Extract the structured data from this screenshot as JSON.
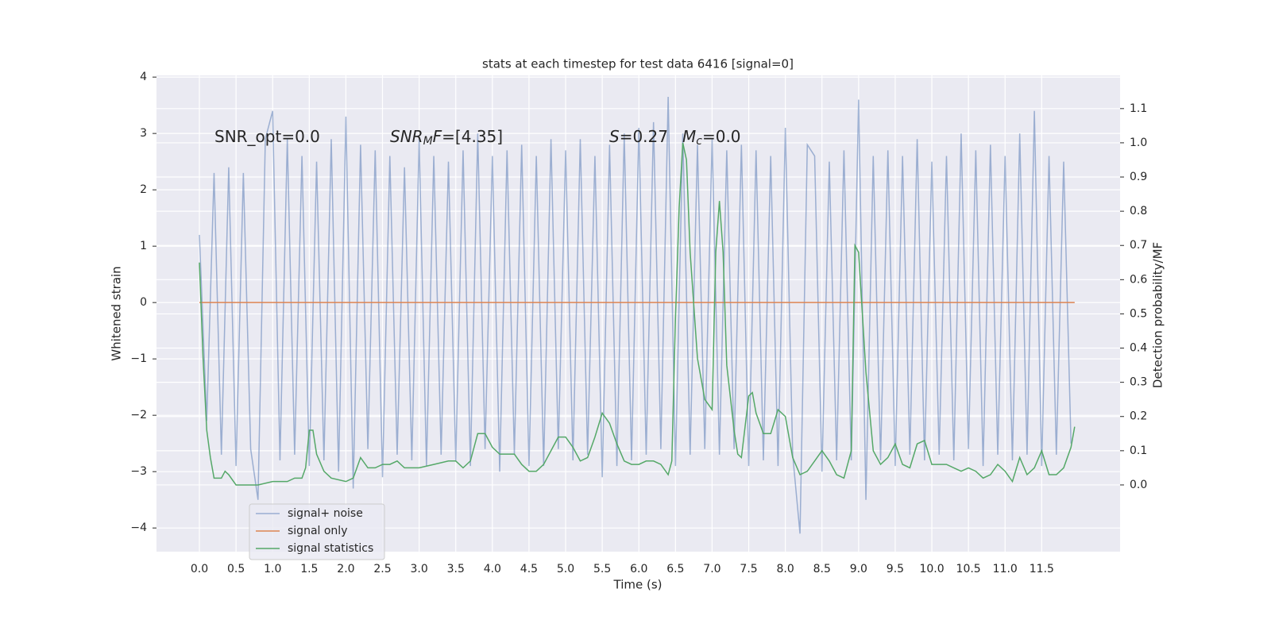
{
  "chart_data": {
    "type": "line",
    "title": "stats at each timestep for test data 6416 [signal=0]",
    "xlabel": "Time (s)",
    "ylabel": "Whitened strain",
    "y2label": "Detection probability/MF",
    "xlim": [
      -0.586,
      12.57
    ],
    "ylim": [
      -4.42,
      4.03
    ],
    "y2lim": [
      -0.195,
      1.197
    ],
    "xticks": [
      {
        "value": 0,
        "label": "0.0"
      },
      {
        "value": 0.5,
        "label": "0.5"
      },
      {
        "value": 1,
        "label": "1.0"
      },
      {
        "value": 1.5,
        "label": "1.5"
      },
      {
        "value": 2,
        "label": "2.0"
      },
      {
        "value": 2.5,
        "label": "2.5"
      },
      {
        "value": 3,
        "label": "3.0"
      },
      {
        "value": 3.5,
        "label": "3.5"
      },
      {
        "value": 4,
        "label": "4.0"
      },
      {
        "value": 4.5,
        "label": "4.5"
      },
      {
        "value": 5,
        "label": "5.0"
      },
      {
        "value": 5.5,
        "label": "5.5"
      },
      {
        "value": 6,
        "label": "6.0"
      },
      {
        "value": 6.5,
        "label": "6.5"
      },
      {
        "value": 7,
        "label": "7.0"
      },
      {
        "value": 7.5,
        "label": "7.5"
      },
      {
        "value": 8,
        "label": "8.0"
      },
      {
        "value": 8.5,
        "label": "8.5"
      },
      {
        "value": 9,
        "label": "9.0"
      },
      {
        "value": 9.5,
        "label": "9.5"
      },
      {
        "value": 10,
        "label": "10.0"
      },
      {
        "value": 10.5,
        "label": "10.5"
      },
      {
        "value": 11,
        "label": "11.0"
      },
      {
        "value": 11.5,
        "label": "11.5"
      }
    ],
    "yticks": [
      {
        "value": -4,
        "label": "−4"
      },
      {
        "value": -3,
        "label": "−3"
      },
      {
        "value": -2,
        "label": "−2"
      },
      {
        "value": -1,
        "label": "−1"
      },
      0,
      1,
      2,
      3,
      4
    ],
    "y2ticks": [
      {
        "value": 0,
        "label": "0.0"
      },
      {
        "value": 0.1,
        "label": "0.1"
      },
      {
        "value": 0.2,
        "label": "0.2"
      },
      {
        "value": 0.3,
        "label": "0.3"
      },
      {
        "value": 0.4,
        "label": "0.4"
      },
      {
        "value": 0.5,
        "label": "0.5"
      },
      {
        "value": 0.6,
        "label": "0.6"
      },
      {
        "value": 0.7,
        "label": "0.7"
      },
      {
        "value": 0.8,
        "label": "0.8"
      },
      {
        "value": 0.9,
        "label": "0.9"
      },
      {
        "value": 1.0,
        "label": "1.0"
      },
      {
        "value": 1.1,
        "label": "1.1"
      }
    ],
    "grid": true,
    "legend": "lower left",
    "annotations": [
      [
        {
          "text": "SNR_opt=0.0"
        }
      ],
      [
        {
          "text": "SNR",
          "italic": true
        },
        {
          "text": "M",
          "italic": true,
          "sub": true
        },
        {
          "text": "F",
          "italic": true
        },
        {
          "text": "=[4.35]"
        }
      ],
      [
        {
          "text": "S",
          "italic": true
        },
        {
          "text": "=0.27"
        }
      ],
      [
        {
          "text": "M",
          "italic": true
        },
        {
          "text": "c",
          "italic": true,
          "sub": true
        },
        {
          "text": "=0.0"
        }
      ]
    ],
    "series": [
      {
        "name": "signal+ noise",
        "color": "#4c72b0",
        "alpha": 0.5,
        "x": [
          0.0,
          0.1,
          0.2,
          0.3,
          0.4,
          0.5,
          0.6,
          0.7,
          0.8,
          0.9,
          1.0,
          1.1,
          1.2,
          1.3,
          1.4,
          1.5,
          1.6,
          1.7,
          1.8,
          1.9,
          2.0,
          2.1,
          2.2,
          2.3,
          2.4,
          2.5,
          2.6,
          2.7,
          2.8,
          2.9,
          3.0,
          3.1,
          3.2,
          3.3,
          3.4,
          3.5,
          3.6,
          3.7,
          3.8,
          3.9,
          4.0,
          4.1,
          4.2,
          4.3,
          4.4,
          4.5,
          4.6,
          4.7,
          4.8,
          4.9,
          5.0,
          5.1,
          5.2,
          5.3,
          5.4,
          5.5,
          5.6,
          5.7,
          5.8,
          5.9,
          6.0,
          6.1,
          6.2,
          6.3,
          6.4,
          6.5,
          6.6,
          6.7,
          6.8,
          6.9,
          7.0,
          7.1,
          7.2,
          7.3,
          7.4,
          7.5,
          7.6,
          7.7,
          7.8,
          7.9,
          8.0,
          8.1,
          8.2,
          8.3,
          8.4,
          8.5,
          8.6,
          8.7,
          8.8,
          8.9,
          9.0,
          9.1,
          9.2,
          9.3,
          9.4,
          9.5,
          9.6,
          9.7,
          9.8,
          9.9,
          10.0,
          10.1,
          10.2,
          10.3,
          10.4,
          10.5,
          10.6,
          10.7,
          10.8,
          10.9,
          11.0,
          11.1,
          11.2,
          11.3,
          11.4,
          11.5,
          11.6,
          11.7,
          11.8,
          11.9
        ],
        "values": [
          1.2,
          -2.1,
          2.3,
          -2.7,
          2.4,
          -2.9,
          2.3,
          -2.6,
          -3.5,
          2.9,
          3.4,
          -2.8,
          2.9,
          -2.7,
          2.6,
          -2.9,
          2.5,
          -2.8,
          2.9,
          -3.0,
          3.3,
          -3.3,
          2.8,
          -2.6,
          2.7,
          -3.1,
          2.6,
          -2.7,
          2.4,
          -2.8,
          2.9,
          -2.9,
          2.6,
          -2.7,
          2.5,
          -2.8,
          2.7,
          -2.9,
          3.0,
          -2.6,
          2.6,
          -3.0,
          2.7,
          -2.7,
          2.8,
          -2.9,
          2.6,
          -2.9,
          2.9,
          -2.6,
          2.7,
          -2.8,
          2.9,
          -2.7,
          2.6,
          -3.1,
          2.8,
          -2.9,
          3.0,
          -2.8,
          3.1,
          -2.7,
          3.2,
          -2.6,
          3.65,
          -2.9,
          3.0,
          -2.7,
          2.8,
          -2.6,
          2.9,
          -2.7,
          2.7,
          -2.6,
          2.8,
          -2.9,
          2.7,
          -2.8,
          2.6,
          -2.9,
          3.1,
          -2.7,
          -4.1,
          2.8,
          2.6,
          -3.0,
          2.5,
          -2.8,
          2.7,
          -2.8,
          3.6,
          -3.5,
          2.6,
          -2.8,
          2.7,
          -2.9,
          2.6,
          -2.7,
          2.9,
          -2.8,
          2.5,
          -2.7,
          2.6,
          -2.8,
          3.0,
          -2.6,
          2.7,
          -2.9,
          2.8,
          -2.7,
          2.6,
          -2.8,
          3.0,
          -2.7,
          3.4,
          -2.9,
          2.6,
          -2.7,
          2.5,
          -2.5
        ]
      },
      {
        "name": "signal only",
        "color": "#dd8452",
        "alpha": 1,
        "x": [
          0.0,
          11.95
        ],
        "values": [
          0,
          0
        ]
      },
      {
        "name": "signal statistics",
        "color": "#55a868",
        "alpha": 1,
        "axis": "y2",
        "x": [
          0.0,
          0.05,
          0.1,
          0.15,
          0.2,
          0.3,
          0.35,
          0.4,
          0.5,
          0.7,
          0.8,
          1.0,
          1.2,
          1.3,
          1.4,
          1.45,
          1.5,
          1.55,
          1.6,
          1.7,
          1.8,
          2.0,
          2.1,
          2.2,
          2.3,
          2.4,
          2.5,
          2.6,
          2.7,
          2.8,
          2.9,
          3.0,
          3.2,
          3.4,
          3.5,
          3.6,
          3.7,
          3.8,
          3.9,
          4.0,
          4.1,
          4.3,
          4.4,
          4.5,
          4.6,
          4.7,
          4.8,
          4.9,
          5.0,
          5.1,
          5.2,
          5.3,
          5.4,
          5.5,
          5.6,
          5.7,
          5.8,
          5.9,
          6.0,
          6.1,
          6.2,
          6.3,
          6.4,
          6.45,
          6.5,
          6.55,
          6.6,
          6.65,
          6.7,
          6.8,
          6.9,
          7.0,
          7.05,
          7.1,
          7.15,
          7.2,
          7.3,
          7.35,
          7.4,
          7.5,
          7.55,
          7.6,
          7.7,
          7.8,
          7.9,
          8.0,
          8.1,
          8.2,
          8.3,
          8.4,
          8.5,
          8.6,
          8.7,
          8.8,
          8.9,
          8.95,
          9.0,
          9.1,
          9.2,
          9.3,
          9.4,
          9.5,
          9.6,
          9.7,
          9.8,
          9.9,
          10.0,
          10.1,
          10.2,
          10.3,
          10.4,
          10.5,
          10.6,
          10.7,
          10.8,
          10.9,
          11.0,
          11.1,
          11.2,
          11.3,
          11.4,
          11.5,
          11.6,
          11.7,
          11.8,
          11.9,
          11.95
        ],
        "values": [
          0.65,
          0.37,
          0.16,
          0.08,
          0.02,
          0.02,
          0.04,
          0.03,
          0.0,
          0.0,
          0.0,
          0.01,
          0.01,
          0.02,
          0.02,
          0.05,
          0.16,
          0.16,
          0.09,
          0.04,
          0.02,
          0.01,
          0.02,
          0.08,
          0.05,
          0.05,
          0.06,
          0.06,
          0.07,
          0.05,
          0.05,
          0.05,
          0.06,
          0.07,
          0.07,
          0.05,
          0.07,
          0.15,
          0.15,
          0.11,
          0.09,
          0.09,
          0.06,
          0.04,
          0.04,
          0.06,
          0.1,
          0.14,
          0.14,
          0.11,
          0.07,
          0.08,
          0.14,
          0.21,
          0.18,
          0.12,
          0.07,
          0.06,
          0.06,
          0.07,
          0.07,
          0.06,
          0.03,
          0.07,
          0.49,
          0.81,
          1.0,
          0.95,
          0.68,
          0.37,
          0.25,
          0.22,
          0.68,
          0.83,
          0.68,
          0.35,
          0.16,
          0.09,
          0.08,
          0.26,
          0.27,
          0.21,
          0.15,
          0.15,
          0.22,
          0.2,
          0.08,
          0.03,
          0.04,
          0.07,
          0.1,
          0.07,
          0.03,
          0.02,
          0.1,
          0.7,
          0.68,
          0.33,
          0.1,
          0.06,
          0.08,
          0.12,
          0.06,
          0.05,
          0.12,
          0.13,
          0.06,
          0.06,
          0.06,
          0.05,
          0.04,
          0.05,
          0.04,
          0.02,
          0.03,
          0.06,
          0.04,
          0.01,
          0.08,
          0.03,
          0.05,
          0.1,
          0.03,
          0.03,
          0.05,
          0.11,
          0.17
        ]
      }
    ]
  }
}
